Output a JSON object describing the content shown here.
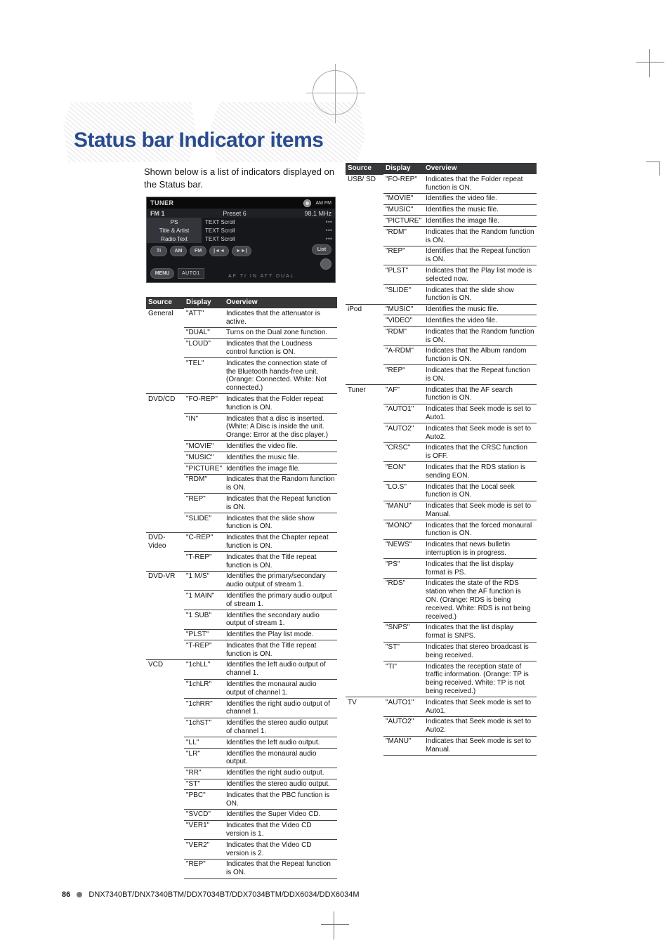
{
  "page": {
    "heading": "Status bar Indicator items",
    "intro": "Shown below is a list of indicators displayed on the Status bar.",
    "footer_page": "86",
    "footer_models": "DNX7340BT/DNX7340BTM/DDX7034BT/DDX7034BTM/DDX6034/DDX6034M"
  },
  "tuner": {
    "title": "TUNER",
    "amfm": "AM\nFM",
    "band": "FM 1",
    "preset": "Preset 6",
    "freq": "98.1 MHz",
    "rows": [
      {
        "label": "PS",
        "text": "TEXT Scroll",
        "dots": "•••"
      },
      {
        "label": "Title & Artist",
        "text": "TEXT Scroll",
        "dots": "•••"
      },
      {
        "label": "Radio Text",
        "text": "TEXT Scroll",
        "dots": "•••"
      }
    ],
    "buttons": {
      "ti": "TI",
      "am": "AM",
      "fm": "FM",
      "prev": "|◄◄",
      "next": "►►|",
      "list": "List",
      "menu": "MENU",
      "auto1": "AUTO1",
      "tiny": "AF    TI   IN   ATT   DUAL"
    }
  },
  "columns": {
    "source": "Source",
    "display": "Display",
    "overview": "Overview"
  },
  "table1": [
    {
      "source": "General",
      "rows": [
        [
          "\"ATT\"",
          "Indicates that the attenuator is active."
        ],
        [
          "\"DUAL\"",
          "Turns on the Dual zone function."
        ],
        [
          "\"LOUD\"",
          "Indicates that the Loudness control function is ON."
        ],
        [
          "\"TEL\"",
          "Indicates the connection state of the Bluetooth hands-free unit. (Orange: Connected.   White: Not connected.)"
        ]
      ]
    },
    {
      "source": "DVD/CD",
      "rows": [
        [
          "\"FO-REP\"",
          "Indicates that the Folder repeat function is ON."
        ],
        [
          "\"IN\"",
          "Indicates that a disc is inserted. (White: A Disc is inside the unit.   Orange: Error at the disc player.)"
        ],
        [
          "\"MOVIE\"",
          "Identifies the video file."
        ],
        [
          "\"MUSIC\"",
          "Identifies the music file."
        ],
        [
          "\"PICTURE\"",
          "Identifies the image file."
        ],
        [
          "\"RDM\"",
          "Indicates that the Random function is ON."
        ],
        [
          "\"REP\"",
          "Indicates that the Repeat function is ON."
        ],
        [
          "\"SLIDE\"",
          "Indicates that the slide show function is ON."
        ]
      ]
    },
    {
      "source": "DVD-Video",
      "rows": [
        [
          "\"C-REP\"",
          "Indicates that the Chapter repeat function is ON."
        ],
        [
          "\"T-REP\"",
          "Indicates that the Title repeat function is ON."
        ]
      ]
    },
    {
      "source": "DVD-VR",
      "rows": [
        [
          "\"1 M/S\"",
          "Identifies the primary/secondary audio output of stream 1."
        ],
        [
          "\"1 MAIN\"",
          "Identifies the primary audio output of stream 1."
        ],
        [
          "\"1 SUB\"",
          "Identifies the secondary audio output of stream 1."
        ],
        [
          "\"PLST\"",
          "Identifies the Play list mode."
        ],
        [
          "\"T-REP\"",
          "Indicates that the Title repeat function is ON."
        ]
      ]
    },
    {
      "source": "VCD",
      "rows": [
        [
          "\"1chLL\"",
          "Identifies the left audio output of channel 1."
        ],
        [
          "\"1chLR\"",
          "Identifies the monaural audio output of channel 1."
        ],
        [
          "\"1chRR\"",
          "Identifies the right audio output of channel 1."
        ],
        [
          "\"1chST\"",
          "Identifies the stereo audio output of channel 1."
        ],
        [
          "\"LL\"",
          "Identifies the left audio output."
        ],
        [
          "\"LR\"",
          "Identifies the monaural audio output."
        ],
        [
          "\"RR\"",
          "Identifies the right audio output."
        ],
        [
          "\"ST\"",
          "Identifies the stereo audio output."
        ],
        [
          "\"PBC\"",
          "Indicates that the PBC function is ON."
        ],
        [
          "\"SVCD\"",
          "Identifies the Super Video CD."
        ],
        [
          "\"VER1\"",
          "Indicates that the Video CD version is 1."
        ],
        [
          "\"VER2\"",
          "Indicates that the Video CD version is 2."
        ],
        [
          "\"REP\"",
          "Indicates that the Repeat function is ON."
        ]
      ]
    }
  ],
  "table2": [
    {
      "source": "USB/ SD",
      "rows": [
        [
          "\"FO-REP\"",
          "Indicates that the Folder repeat function is ON."
        ],
        [
          "\"MOVIE\"",
          "Identifies the video file."
        ],
        [
          "\"MUSIC\"",
          "Identifies the music file."
        ],
        [
          "\"PICTURE\"",
          "Identifies the image file."
        ],
        [
          "\"RDM\"",
          "Indicates that the Random function is ON."
        ],
        [
          "\"REP\"",
          "Identifies that the Repeat function is ON."
        ],
        [
          "\"PLST\"",
          "Indicates that the Play list mode is selected now."
        ],
        [
          "\"SLIDE\"",
          "Indicates that the slide show function is ON."
        ]
      ]
    },
    {
      "source": "iPod",
      "rows": [
        [
          "\"MUSIC\"",
          "Identifies the music file."
        ],
        [
          "\"VIDEO\"",
          "Identifies the video file."
        ],
        [
          "\"RDM\"",
          "Indicates that the Random function is ON."
        ],
        [
          "\"A-RDM\"",
          "Indicates that the Album random function is ON."
        ],
        [
          "\"REP\"",
          "Indicates that the Repeat function is ON."
        ]
      ]
    },
    {
      "source": "Tuner",
      "rows": [
        [
          "\"AF\"",
          "Indicates that the AF search function is ON."
        ],
        [
          "\"AUTO1\"",
          "Indicates that Seek mode is set to Auto1."
        ],
        [
          "\"AUTO2\"",
          "Indicates that Seek mode is set to Auto2."
        ],
        [
          "\"CRSC\"",
          "Indicates that the CRSC function is OFF."
        ],
        [
          "\"EON\"",
          "Indicates that the RDS station is sending EON."
        ],
        [
          "\"LO.S\"",
          "Indicates that the Local seek function is ON."
        ],
        [
          "\"MANU\"",
          "Indicates that Seek mode is set to Manual."
        ],
        [
          "\"MONO\"",
          "Indicates that the forced monaural function is ON."
        ],
        [
          "\"NEWS\"",
          "Indicates that news bulletin interruption is in progress."
        ],
        [
          "\"PS\"",
          "Indicates that the list display format is PS."
        ],
        [
          "\"RDS\"",
          "Indicates the state of the RDS station when the AF function is ON. (Orange: RDS is being received.  White: RDS is not being received.)"
        ],
        [
          "\"SNPS\"",
          "Indicates that the list display format is SNPS."
        ],
        [
          "\"ST\"",
          "Indicates that stereo broadcast is being received."
        ],
        [
          "\"TI\"",
          "Indicates the reception state of traffic information. (Orange: TP is being received.   White: TP is not being received.)"
        ]
      ]
    },
    {
      "source": "TV",
      "rows": [
        [
          "\"AUTO1\"",
          "Indicates that Seek mode is set to Auto1."
        ],
        [
          "\"AUTO2\"",
          "Indicates that Seek mode is set to Auto2."
        ],
        [
          "\"MANU\"",
          "Indicates that Seek mode is set to Manual."
        ]
      ]
    }
  ],
  "colors": {
    "heading": "#2a4b8d",
    "th_bg": "#36383a",
    "rule": "#3e4042",
    "tuner_bg": "#15171b"
  }
}
